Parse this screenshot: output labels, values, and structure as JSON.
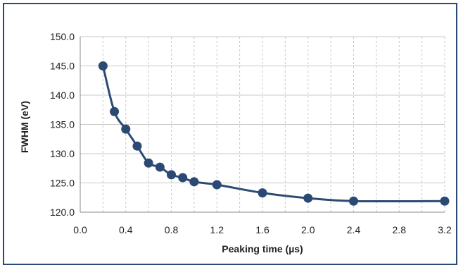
{
  "chart_data": {
    "type": "line",
    "title": "",
    "xlabel": "Peaking time (µs)",
    "ylabel": "FWHM (eV)",
    "xlim": [
      0.0,
      3.2
    ],
    "ylim": [
      120.0,
      150.0
    ],
    "x_ticks": [
      "0.0",
      "0.4",
      "0.8",
      "1.2",
      "1.6",
      "2.0",
      "2.4",
      "2.8",
      "3.2"
    ],
    "y_ticks": [
      "120.0",
      "125.0",
      "130.0",
      "135.0",
      "140.0",
      "145.0",
      "150.0"
    ],
    "x_tick_values": [
      0.0,
      0.4,
      0.8,
      1.2,
      1.6,
      2.0,
      2.4,
      2.8,
      3.2
    ],
    "y_tick_values": [
      120,
      125,
      130,
      135,
      140,
      145,
      150
    ],
    "minor_x_grid_step": 0.2,
    "grid": true,
    "legend": "none",
    "colors": {
      "series": "#2b4a73",
      "grid": "#c8c8c8",
      "frame": "#2b4a73"
    },
    "series": [
      {
        "x": [
          0.2,
          0.3,
          0.4,
          0.5,
          0.6,
          0.7,
          0.8,
          0.9,
          1.0,
          1.2,
          1.6,
          2.0,
          2.4,
          3.2
        ],
        "y": [
          145.0,
          137.2,
          134.2,
          131.3,
          128.4,
          127.7,
          126.4,
          125.9,
          125.2,
          124.7,
          123.3,
          122.4,
          121.9,
          121.9
        ]
      }
    ]
  }
}
